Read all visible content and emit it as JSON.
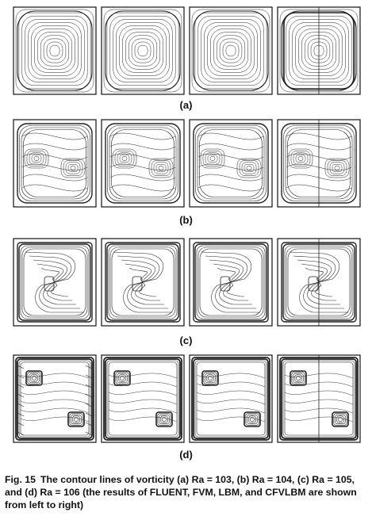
{
  "figure": {
    "rows": [
      {
        "label": "(a)",
        "pattern": "a",
        "panels": [
          "FLUENT",
          "FVM",
          "LBM",
          "CFVLBM"
        ]
      },
      {
        "label": "(b)",
        "pattern": "b",
        "panels": [
          "FLUENT",
          "FVM",
          "LBM",
          "CFVLBM"
        ]
      },
      {
        "label": "(c)",
        "pattern": "c",
        "panels": [
          "FLUENT",
          "FVM",
          "LBM",
          "CFVLBM"
        ]
      },
      {
        "label": "(d)",
        "pattern": "d",
        "panels": [
          "FLUENT",
          "FVM",
          "LBM",
          "CFVLBM"
        ]
      }
    ],
    "caption": {
      "figure_number": "Fig. 15",
      "text": "The contour lines of vorticity (a) Ra = 103, (b) Ra = 104, (c) Ra = 105, and (d) Ra = 106 (the results of FLUENT, FVM, LBM, and CFVLBM are shown from left to right)"
    }
  }
}
